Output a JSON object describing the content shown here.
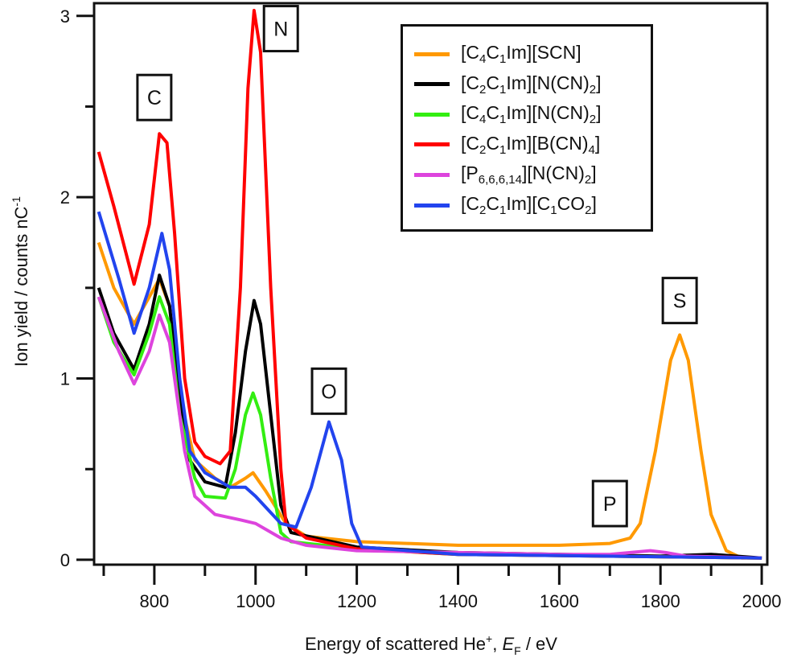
{
  "chart_data": {
    "type": "line",
    "title": "",
    "xlabel": "Energy of scattered He+, EF / eV",
    "xlabel_parts": {
      "pre": "Energy of scattered He",
      "sup": "+",
      "mid": ", ",
      "var": "E",
      "sub": "F",
      "post": " / eV"
    },
    "ylabel": "Ion yield / counts nC-1",
    "ylabel_parts": {
      "pre": "Ion yield / counts nC",
      "sup": "-1"
    },
    "xlim": [
      681,
      2011
    ],
    "ylim": [
      -0.027,
      3.07
    ],
    "xticks": [
      800,
      1000,
      1200,
      1400,
      1600,
      1800,
      2000
    ],
    "xtick_labels": [
      "800",
      "1000",
      "1200",
      "1400",
      "1600",
      "1800",
      "2000"
    ],
    "yticks": [
      0,
      1,
      2,
      3
    ],
    "ytick_labels": [
      "0",
      "1",
      "2",
      "3"
    ],
    "grid": false,
    "legend_position": "top-right",
    "annotations": [
      {
        "text": "C",
        "x": 800,
        "y": 2.55
      },
      {
        "text": "N",
        "x": 1050,
        "y": 2.93
      },
      {
        "text": "O",
        "x": 1145,
        "y": 0.93
      },
      {
        "text": "P",
        "x": 1700,
        "y": 0.31
      },
      {
        "text": "S",
        "x": 1838,
        "y": 1.43
      }
    ],
    "series": [
      {
        "name": "[C4C1Im][SCN]",
        "label_parts": [
          [
            "[C",
            ""
          ],
          [
            "4",
            "sub"
          ],
          [
            "C",
            ""
          ],
          [
            "1",
            "sub"
          ],
          [
            "Im][SCN]",
            ""
          ]
        ],
        "color": "#ff9900",
        "x": [
          690,
          720,
          760,
          790,
          810,
          830,
          850,
          880,
          920,
          950,
          980,
          995,
          1020,
          1060,
          1100,
          1200,
          1300,
          1400,
          1500,
          1600,
          1700,
          1740,
          1760,
          1790,
          1820,
          1838,
          1855,
          1880,
          1900,
          1930,
          1960,
          2000
        ],
        "y": [
          1.75,
          1.5,
          1.3,
          1.45,
          1.55,
          1.4,
          0.9,
          0.55,
          0.45,
          0.4,
          0.45,
          0.48,
          0.38,
          0.2,
          0.13,
          0.1,
          0.09,
          0.08,
          0.08,
          0.08,
          0.09,
          0.12,
          0.2,
          0.6,
          1.1,
          1.24,
          1.1,
          0.6,
          0.25,
          0.05,
          0.01,
          0.01
        ]
      },
      {
        "name": "[C2C1Im][N(CN)2]",
        "label_parts": [
          [
            "[C",
            ""
          ],
          [
            "2",
            "sub"
          ],
          [
            "C",
            ""
          ],
          [
            "1",
            "sub"
          ],
          [
            "Im][N(CN)",
            ""
          ],
          [
            "2",
            "sub"
          ],
          [
            "]",
            ""
          ]
        ],
        "color": "#000000",
        "x": [
          690,
          720,
          760,
          790,
          810,
          830,
          850,
          870,
          900,
          940,
          960,
          980,
          997,
          1010,
          1030,
          1050,
          1070,
          1200,
          1400,
          1800,
          1900,
          2000
        ],
        "y": [
          1.5,
          1.25,
          1.05,
          1.3,
          1.57,
          1.4,
          0.9,
          0.55,
          0.43,
          0.4,
          0.7,
          1.15,
          1.43,
          1.3,
          0.8,
          0.3,
          0.15,
          0.07,
          0.04,
          0.02,
          0.03,
          0.01
        ]
      },
      {
        "name": "[C4C1Im][N(CN)2]",
        "label_parts": [
          [
            "[C",
            ""
          ],
          [
            "4",
            "sub"
          ],
          [
            "C",
            ""
          ],
          [
            "1",
            "sub"
          ],
          [
            "Im][N(CN)",
            ""
          ],
          [
            "2",
            "sub"
          ],
          [
            "]",
            ""
          ]
        ],
        "color": "#33ee11",
        "x": [
          690,
          720,
          760,
          790,
          810,
          830,
          850,
          880,
          900,
          940,
          960,
          980,
          995,
          1010,
          1030,
          1050,
          1070,
          1200,
          1400,
          2000
        ],
        "y": [
          1.45,
          1.2,
          1.02,
          1.25,
          1.45,
          1.3,
          0.8,
          0.45,
          0.35,
          0.34,
          0.5,
          0.8,
          0.92,
          0.8,
          0.45,
          0.15,
          0.1,
          0.06,
          0.03,
          0.01
        ]
      },
      {
        "name": "[C2C1Im][B(CN)4]",
        "label_parts": [
          [
            "[C",
            ""
          ],
          [
            "2",
            "sub"
          ],
          [
            "C",
            ""
          ],
          [
            "1",
            "sub"
          ],
          [
            "Im][B(CN)",
            ""
          ],
          [
            "4",
            "sub"
          ],
          [
            "]",
            ""
          ]
        ],
        "color": "#ff0000",
        "x": [
          690,
          720,
          760,
          790,
          810,
          825,
          840,
          860,
          880,
          900,
          930,
          950,
          970,
          985,
          997,
          1010,
          1030,
          1050,
          1060,
          1100,
          1200,
          1400,
          2000
        ],
        "y": [
          2.25,
          1.95,
          1.52,
          1.85,
          2.35,
          2.3,
          1.8,
          1.0,
          0.65,
          0.57,
          0.53,
          0.6,
          1.5,
          2.6,
          3.03,
          2.8,
          1.5,
          0.5,
          0.2,
          0.12,
          0.06,
          0.03,
          0.01
        ]
      },
      {
        "name": "[P6,6,6,14][N(CN)2]",
        "label_parts": [
          [
            "[P",
            ""
          ],
          [
            "6,6,6,14",
            "sub"
          ],
          [
            "][N(CN)",
            ""
          ],
          [
            "2",
            "sub"
          ],
          [
            "]",
            ""
          ]
        ],
        "color": "#dd44dd",
        "x": [
          690,
          730,
          760,
          790,
          810,
          830,
          860,
          880,
          920,
          970,
          1000,
          1050,
          1100,
          1200,
          1600,
          1700,
          1780,
          1810,
          1850,
          2000
        ],
        "y": [
          1.45,
          1.15,
          0.97,
          1.15,
          1.35,
          1.2,
          0.6,
          0.35,
          0.25,
          0.22,
          0.2,
          0.12,
          0.08,
          0.05,
          0.03,
          0.03,
          0.05,
          0.04,
          0.02,
          0.01
        ]
      },
      {
        "name": "[C2C1Im][C1CO2]",
        "label_parts": [
          [
            "[C",
            ""
          ],
          [
            "2",
            "sub"
          ],
          [
            "C",
            ""
          ],
          [
            "1",
            "sub"
          ],
          [
            "Im][C",
            ""
          ],
          [
            "1",
            "sub"
          ],
          [
            "CO",
            ""
          ],
          [
            "2",
            "sub"
          ],
          [
            "]",
            ""
          ]
        ],
        "color": "#2244ee",
        "x": [
          690,
          730,
          760,
          790,
          815,
          830,
          850,
          870,
          900,
          950,
          980,
          1000,
          1050,
          1080,
          1110,
          1145,
          1170,
          1190,
          1210,
          1400,
          2000
        ],
        "y": [
          1.92,
          1.55,
          1.25,
          1.5,
          1.8,
          1.6,
          1.0,
          0.6,
          0.48,
          0.4,
          0.4,
          0.35,
          0.2,
          0.18,
          0.4,
          0.76,
          0.55,
          0.2,
          0.07,
          0.03,
          0.01
        ]
      }
    ]
  }
}
